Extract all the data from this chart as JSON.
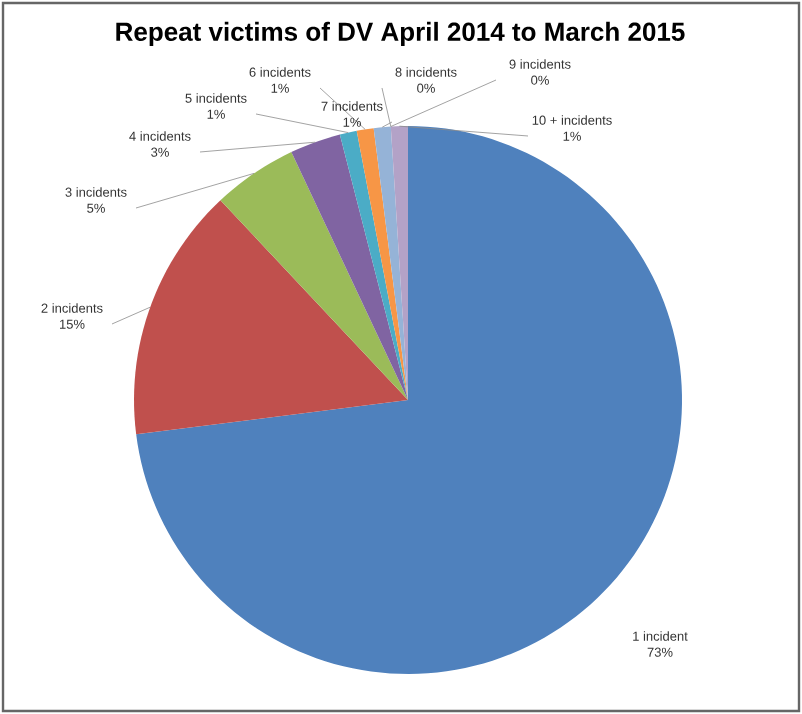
{
  "chart_data": {
    "type": "pie",
    "title": "Repeat victims of DV April 2014 to March 2015",
    "categories": [
      "1 incident",
      "2 incidents",
      "3 incidents",
      "4 incidents",
      "5 incidents",
      "6 incidents",
      "7 incidents",
      "8 incidents",
      "9 incidents",
      "10 + incidents"
    ],
    "values": [
      73,
      15,
      5,
      3,
      1,
      1,
      1,
      0,
      0,
      1
    ],
    "value_labels": [
      "73%",
      "15%",
      "5%",
      "3%",
      "1%",
      "1%",
      "1%",
      "0%",
      "0%",
      "1%"
    ],
    "colors": [
      "#4f81bd",
      "#c0504d",
      "#9bbb59",
      "#8064a2",
      "#4bacc6",
      "#f79646",
      "#95b3d7",
      "#d99694",
      "#c3d69b",
      "#b3a2c7"
    ]
  }
}
